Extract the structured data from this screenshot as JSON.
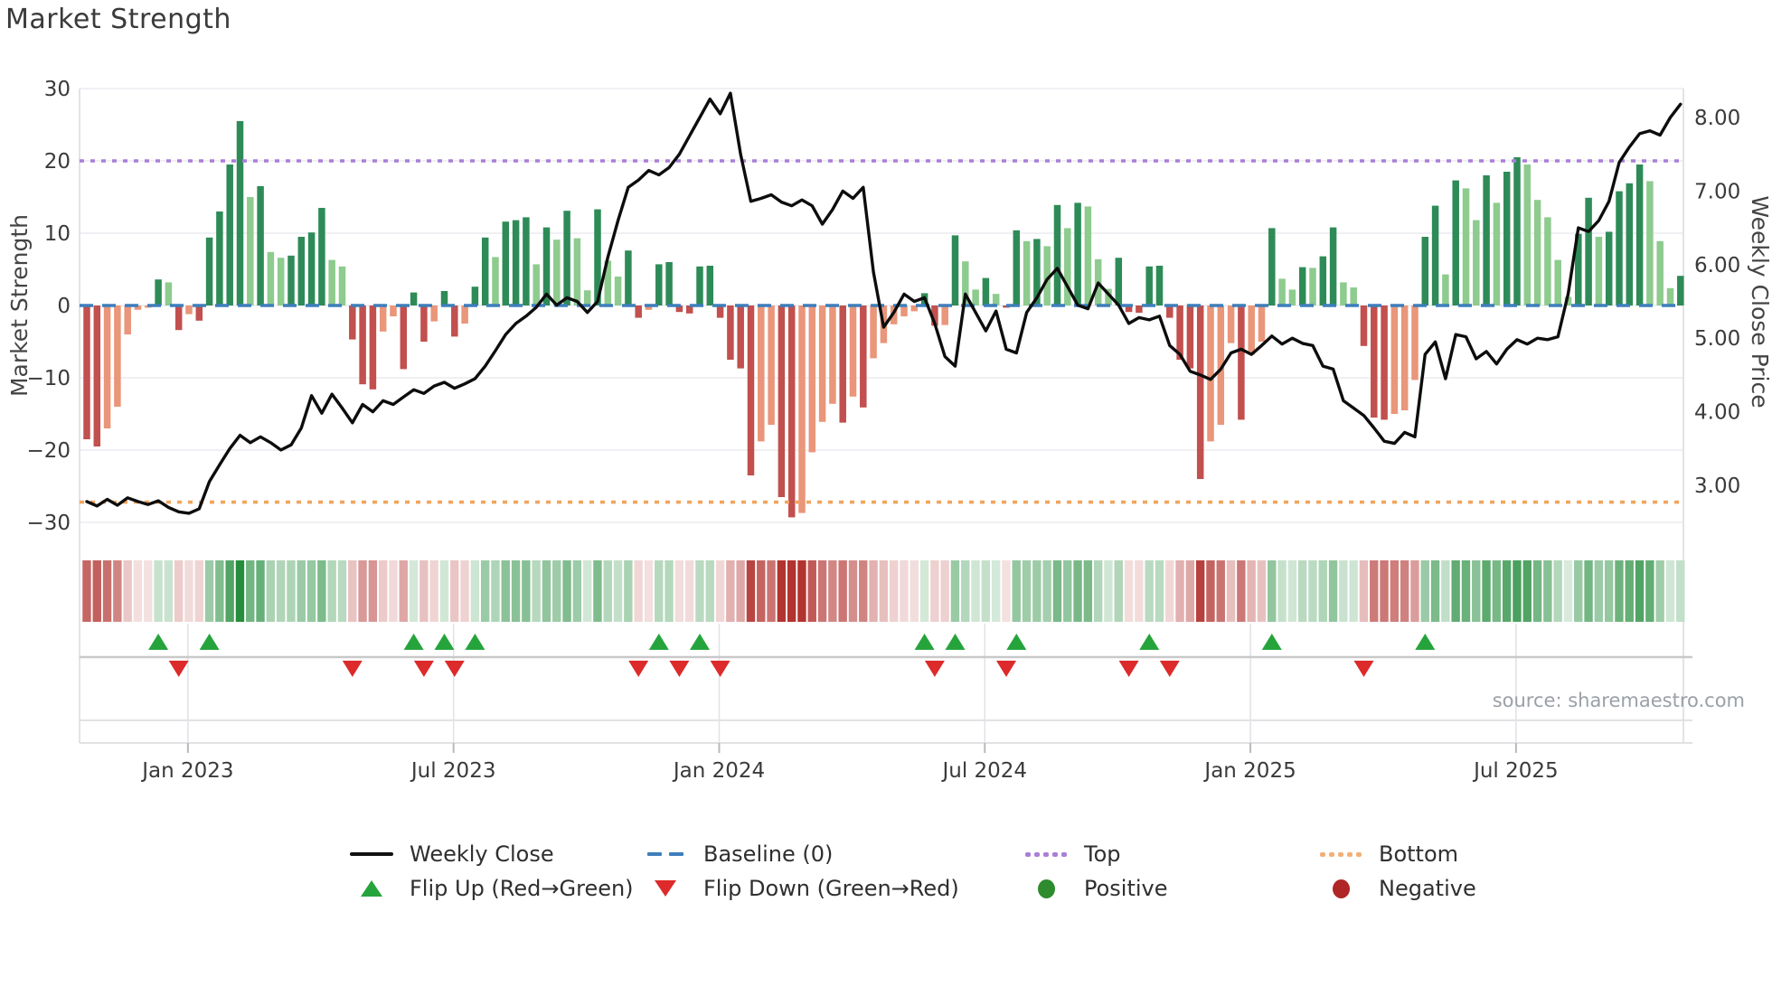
{
  "title": "Market Strength",
  "source": "source: sharemaestro.com",
  "axes": {
    "left_label": "Market Strength",
    "right_label": "Weekly Close Price",
    "left_ticks": [
      30,
      20,
      10,
      0,
      -10,
      -20,
      -30
    ],
    "right_ticks": [
      "8.00",
      "7.00",
      "6.00",
      "5.00",
      "4.00",
      "3.00"
    ],
    "right_tick_values": [
      8,
      7,
      6,
      5,
      4,
      3
    ],
    "x_tick_labels": [
      "Jan 2023",
      "Jul 2023",
      "Jan 2024",
      "Jul 2024",
      "Jan 2025",
      "Jul 2025"
    ]
  },
  "chart_data": {
    "type": "composite",
    "subtypes": [
      "bar",
      "line",
      "heatmap",
      "scatter"
    ],
    "title": "Market Strength",
    "ylabel_left": "Market Strength",
    "ylabel_right": "Weekly Close Price",
    "ylim_left": [
      -30,
      30
    ],
    "ylim_right_ticks": [
      3,
      8
    ],
    "baseline": 0,
    "top_line": 20,
    "bottom_line": -27.2,
    "x_tick_weeks": [
      9.9,
      35.9,
      61.9,
      87.9,
      113.9,
      139.9
    ],
    "series": [
      {
        "name": "Market Strength",
        "type": "bar",
        "axis": "left",
        "values": [
          -18.5,
          -19.5,
          -17.0,
          -14.0,
          -4.0,
          -0.6,
          -0.3,
          3.6,
          3.2,
          -3.4,
          -1.2,
          -2.1,
          9.4,
          13.0,
          19.5,
          25.5,
          15.0,
          16.5,
          7.4,
          6.6,
          6.9,
          9.5,
          10.1,
          13.5,
          6.3,
          5.4,
          -4.7,
          -10.9,
          -11.6,
          -3.6,
          -1.5,
          -8.8,
          1.8,
          -5.0,
          -2.2,
          2.0,
          -4.3,
          -2.5,
          2.6,
          9.4,
          6.7,
          11.6,
          11.8,
          12.2,
          5.7,
          10.8,
          9.1,
          13.1,
          9.3,
          2.1,
          13.3,
          6.2,
          4.0,
          7.6,
          -1.7,
          -0.6,
          5.7,
          6.0,
          -0.9,
          -1.1,
          5.4,
          5.5,
          -1.7,
          -7.5,
          -8.7,
          -23.5,
          -18.8,
          -16.5,
          -26.5,
          -29.3,
          -28.7,
          -20.3,
          -16.1,
          -13.6,
          -16.2,
          -12.6,
          -14.1,
          -7.3,
          -5.2,
          -2.6,
          -1.5,
          -0.8,
          1.7,
          -2.8,
          -2.7,
          9.7,
          6.1,
          2.2,
          3.8,
          1.6,
          -0.3,
          10.4,
          8.9,
          9.2,
          8.2,
          13.9,
          10.7,
          14.2,
          13.7,
          6.4,
          2.3,
          6.6,
          -0.9,
          -1.0,
          5.4,
          5.5,
          -1.7,
          -7.5,
          -8.7,
          -24.0,
          -18.8,
          -16.5,
          -5.2,
          -15.8,
          -6.8,
          -5.0,
          10.7,
          3.7,
          2.2,
          5.3,
          5.2,
          6.8,
          10.8,
          3.2,
          2.5,
          -5.6,
          -15.5,
          -15.8,
          -15.0,
          -14.5,
          -10.3,
          9.5,
          13.8,
          4.3,
          17.3,
          16.2,
          11.8,
          18.0,
          14.2,
          18.5,
          20.5,
          19.5,
          14.6,
          12.2,
          6.3,
          1.2,
          9.9,
          14.9,
          9.5,
          10.2,
          15.8,
          16.9,
          19.5,
          17.2,
          8.9,
          2.4,
          4.1
        ]
      },
      {
        "name": "Weekly Close",
        "type": "line",
        "axis": "right",
        "values": [
          2.78,
          2.72,
          2.81,
          2.73,
          2.83,
          2.78,
          2.74,
          2.79,
          2.7,
          2.64,
          2.62,
          2.68,
          3.05,
          3.28,
          3.5,
          3.68,
          3.58,
          3.66,
          3.58,
          3.48,
          3.55,
          3.78,
          4.22,
          3.98,
          4.24,
          4.05,
          3.85,
          4.1,
          4.0,
          4.15,
          4.1,
          4.2,
          4.3,
          4.25,
          4.35,
          4.4,
          4.32,
          4.38,
          4.45,
          4.62,
          4.83,
          5.05,
          5.2,
          5.3,
          5.42,
          5.6,
          5.45,
          5.55,
          5.5,
          5.35,
          5.5,
          6.1,
          6.6,
          7.05,
          7.15,
          7.28,
          7.22,
          7.32,
          7.5,
          7.75,
          8.0,
          8.25,
          8.05,
          8.33,
          7.5,
          6.86,
          6.9,
          6.95,
          6.85,
          6.8,
          6.88,
          6.8,
          6.55,
          6.75,
          7.0,
          6.9,
          7.05,
          5.9,
          5.15,
          5.35,
          5.6,
          5.5,
          5.55,
          5.2,
          4.75,
          4.62,
          5.6,
          5.35,
          5.1,
          5.37,
          4.85,
          4.8,
          5.35,
          5.55,
          5.8,
          5.95,
          5.7,
          5.45,
          5.4,
          5.75,
          5.6,
          5.45,
          5.2,
          5.28,
          5.25,
          5.3,
          4.9,
          4.78,
          4.55,
          4.5,
          4.44,
          4.58,
          4.8,
          4.85,
          4.78,
          4.9,
          5.03,
          4.92,
          5.0,
          4.93,
          4.9,
          4.62,
          4.58,
          4.15,
          4.05,
          3.95,
          3.78,
          3.6,
          3.57,
          3.72,
          3.66,
          4.78,
          4.95,
          4.45,
          5.05,
          5.02,
          4.72,
          4.82,
          4.65,
          4.85,
          4.98,
          4.92,
          5.0,
          4.98,
          5.02,
          5.6,
          6.5,
          6.45,
          6.6,
          6.86,
          7.39,
          7.6,
          7.78,
          7.82,
          7.76,
          8.0,
          8.18
        ]
      }
    ],
    "flip_up_weeks": [
      7,
      12,
      32,
      35,
      38,
      56,
      60,
      82,
      85,
      91,
      104,
      116,
      131
    ],
    "flip_down_weeks": [
      9,
      26,
      33,
      36,
      54,
      58,
      62,
      83,
      90,
      102,
      106,
      125
    ],
    "heatmap": "derived from Market Strength values (red negative, green positive, shade by magnitude)",
    "legend_position": "bottom",
    "grid": "horizontal"
  },
  "legend": {
    "items": [
      {
        "label": "Weekly Close",
        "type": "line",
        "color": "#111111"
      },
      {
        "label": "Baseline (0)",
        "type": "dashes",
        "color": "#3d7ebc"
      },
      {
        "label": "Top",
        "type": "dots",
        "color": "#a87fd8"
      },
      {
        "label": "Bottom",
        "type": "dots",
        "color": "#f2b077"
      },
      {
        "label": "Flip Up (Red→Green)",
        "type": "tri-up",
        "color": "#26a43c"
      },
      {
        "label": "Flip Down (Green→Red)",
        "type": "tri-down",
        "color": "#dd2a2a"
      },
      {
        "label": "Positive",
        "type": "dot",
        "color": "#2e8b2e"
      },
      {
        "label": "Negative",
        "type": "dot",
        "color": "#b02525"
      }
    ]
  },
  "colors": {
    "bar_pos_dark": "#2e8b57",
    "bar_pos_light": "#8ecb8e",
    "bar_neg_dark": "#c1504e",
    "bar_neg_light": "#e9967a",
    "baseline": "#3d7ebc",
    "top": "#a87fd8",
    "bottom": "#f2a45c",
    "price_line": "#0d0d0d",
    "flip_up": "#26a43c",
    "flip_down": "#dd2a2a",
    "grid": "#ececf1",
    "band_line": "#d9d9de",
    "marker_line": "#c9c9c9",
    "tick_text": "#3a3a3a",
    "axis_title": "#444444",
    "heat_pos": [
      34,
      139,
      58
    ],
    "heat_neg": [
      178,
      52,
      48
    ]
  }
}
